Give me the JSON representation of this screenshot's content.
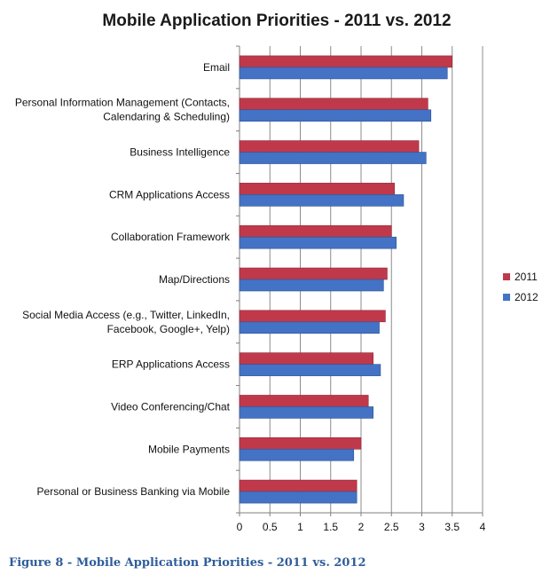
{
  "chart_data": {
    "type": "bar",
    "orientation": "horizontal",
    "title": "Mobile Application Priorities - 2011 vs. 2012",
    "categories": [
      [
        "Email"
      ],
      [
        "Personal Information Management (Contacts,",
        "Calendaring & Scheduling)"
      ],
      [
        "Business Intelligence"
      ],
      [
        "CRM Applications Access"
      ],
      [
        "Collaboration Framework"
      ],
      [
        "Map/Directions"
      ],
      [
        "Social Media Access (e.g., Twitter, LinkedIn,",
        "Facebook, Google+, Yelp)"
      ],
      [
        "ERP Applications Access"
      ],
      [
        "Video Conferencing/Chat"
      ],
      [
        "Mobile Payments"
      ],
      [
        "Personal or Business Banking via Mobile"
      ]
    ],
    "series": [
      {
        "name": "2011",
        "color": "#c0394b",
        "values": [
          3.5,
          3.1,
          2.95,
          2.55,
          2.5,
          2.43,
          2.4,
          2.2,
          2.12,
          2.0,
          1.93
        ]
      },
      {
        "name": "2012",
        "color": "#4472c4",
        "values": [
          3.42,
          3.15,
          3.07,
          2.7,
          2.58,
          2.37,
          2.3,
          2.32,
          2.2,
          1.88,
          1.93
        ]
      }
    ],
    "xlim": [
      0,
      4
    ],
    "xticks": [
      "0",
      "0.5",
      "1",
      "1.5",
      "2",
      "2.5",
      "3",
      "3.5",
      "4"
    ],
    "grid": "vertical",
    "legend_position": "right"
  },
  "caption": "Figure 8 - Mobile Application Priorities - 2011 vs. 2012"
}
